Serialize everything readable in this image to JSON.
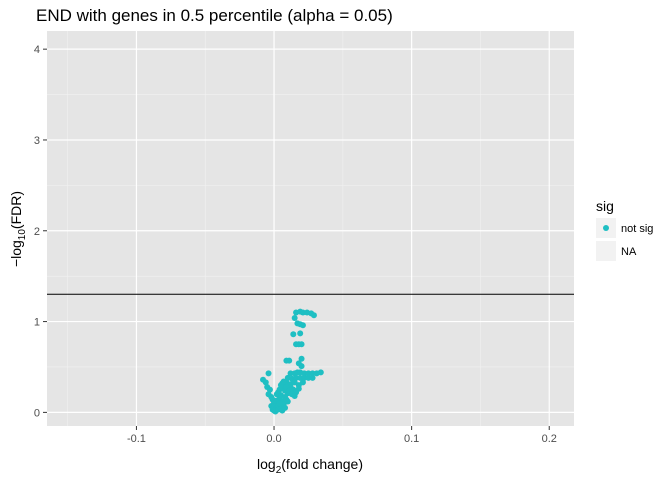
{
  "chart_data": {
    "type": "scatter",
    "title": "END with genes in 0.5 percentile (alpha = 0.05)",
    "xlabel": {
      "prefix": "log",
      "sub": "2",
      "suffix": "(fold change)"
    },
    "ylabel": {
      "prefix": "−log",
      "sub": "10",
      "suffix": "(FDR)"
    },
    "xlim": [
      -0.165,
      0.218
    ],
    "ylim": [
      -0.15,
      4.2
    ],
    "x_ticks": [
      -0.1,
      0.0,
      0.1,
      0.2
    ],
    "x_tick_labels": [
      "-0.1",
      "0.0",
      "0.1",
      "0.2"
    ],
    "y_ticks": [
      0,
      1,
      2,
      3,
      4
    ],
    "y_tick_labels": [
      "0",
      "1",
      "2",
      "3",
      "4"
    ],
    "hline": 1.301,
    "grid": true,
    "background": "#e5e5e5",
    "point_color": "#1fbfc3",
    "legend": {
      "title": "sig",
      "placement": "right",
      "entries": [
        {
          "label": "not sig",
          "color": "#1fbfc3"
        },
        {
          "label": "NA",
          "color": null
        }
      ]
    },
    "series": [
      {
        "name": "not sig",
        "points": [
          [
            0.016,
            1.1
          ],
          [
            0.019,
            1.11
          ],
          [
            0.021,
            1.1
          ],
          [
            0.024,
            1.1
          ],
          [
            0.027,
            1.09
          ],
          [
            0.029,
            1.07
          ],
          [
            0.015,
            1.04
          ],
          [
            0.017,
            0.98
          ],
          [
            0.019,
            0.97
          ],
          [
            0.021,
            0.96
          ],
          [
            0.014,
            0.86
          ],
          [
            0.019,
            0.87
          ],
          [
            0.016,
            0.75
          ],
          [
            0.018,
            0.75
          ],
          [
            0.02,
            0.75
          ],
          [
            0.009,
            0.57
          ],
          [
            0.011,
            0.57
          ],
          [
            0.02,
            0.59
          ],
          [
            0.018,
            0.54
          ],
          [
            0.02,
            0.51
          ],
          [
            -0.004,
            0.43
          ],
          [
            0.012,
            0.43
          ],
          [
            0.015,
            0.43
          ],
          [
            0.017,
            0.44
          ],
          [
            0.019,
            0.44
          ],
          [
            0.022,
            0.43
          ],
          [
            0.025,
            0.43
          ],
          [
            0.028,
            0.43
          ],
          [
            0.031,
            0.43
          ],
          [
            0.034,
            0.44
          ],
          [
            -0.008,
            0.36
          ],
          [
            -0.006,
            0.33
          ],
          [
            0.01,
            0.38
          ],
          [
            0.013,
            0.37
          ],
          [
            0.016,
            0.38
          ],
          [
            0.019,
            0.38
          ],
          [
            0.022,
            0.38
          ],
          [
            0.025,
            0.38
          ],
          [
            0.028,
            0.38
          ],
          [
            -0.005,
            0.28
          ],
          [
            -0.003,
            0.25
          ],
          [
            0.006,
            0.32
          ],
          [
            0.009,
            0.33
          ],
          [
            0.012,
            0.31
          ],
          [
            0.015,
            0.33
          ],
          [
            0.018,
            0.3
          ],
          [
            0.021,
            0.33
          ],
          [
            -0.004,
            0.2
          ],
          [
            -0.002,
            0.17
          ],
          [
            -0.001,
            0.14
          ],
          [
            0.0,
            0.11
          ],
          [
            0.002,
            0.2
          ],
          [
            0.004,
            0.25
          ],
          [
            0.006,
            0.27
          ],
          [
            0.008,
            0.24
          ],
          [
            0.01,
            0.21
          ],
          [
            0.012,
            0.28
          ],
          [
            0.014,
            0.25
          ],
          [
            0.016,
            0.22
          ],
          [
            0.018,
            0.26
          ],
          [
            0.001,
            0.07
          ],
          [
            0.002,
            0.04
          ],
          [
            0.003,
            0.08
          ],
          [
            0.004,
            0.15
          ],
          [
            0.005,
            0.19
          ],
          [
            0.006,
            0.12
          ],
          [
            0.007,
            0.1
          ],
          [
            0.008,
            0.17
          ],
          [
            0.009,
            0.14
          ],
          [
            -0.002,
            0.07
          ],
          [
            -0.001,
            0.03
          ],
          [
            0.0,
            0.02
          ],
          [
            0.001,
            0.01
          ],
          [
            0.003,
            0.03
          ],
          [
            0.005,
            0.04
          ],
          [
            0.006,
            0.06
          ],
          [
            0.007,
            0.09
          ],
          [
            0.005,
            0.3
          ],
          [
            0.007,
            0.34
          ],
          [
            0.009,
            0.28
          ],
          [
            0.011,
            0.24
          ],
          [
            0.013,
            0.2
          ],
          [
            0.015,
            0.18
          ],
          [
            0.002,
            0.13
          ],
          [
            0.004,
            0.1
          ],
          [
            0.006,
            0.02
          ],
          [
            0.003,
            0.22
          ],
          [
            0.008,
            0.05
          ],
          [
            0.01,
            0.12
          ]
        ]
      }
    ]
  }
}
